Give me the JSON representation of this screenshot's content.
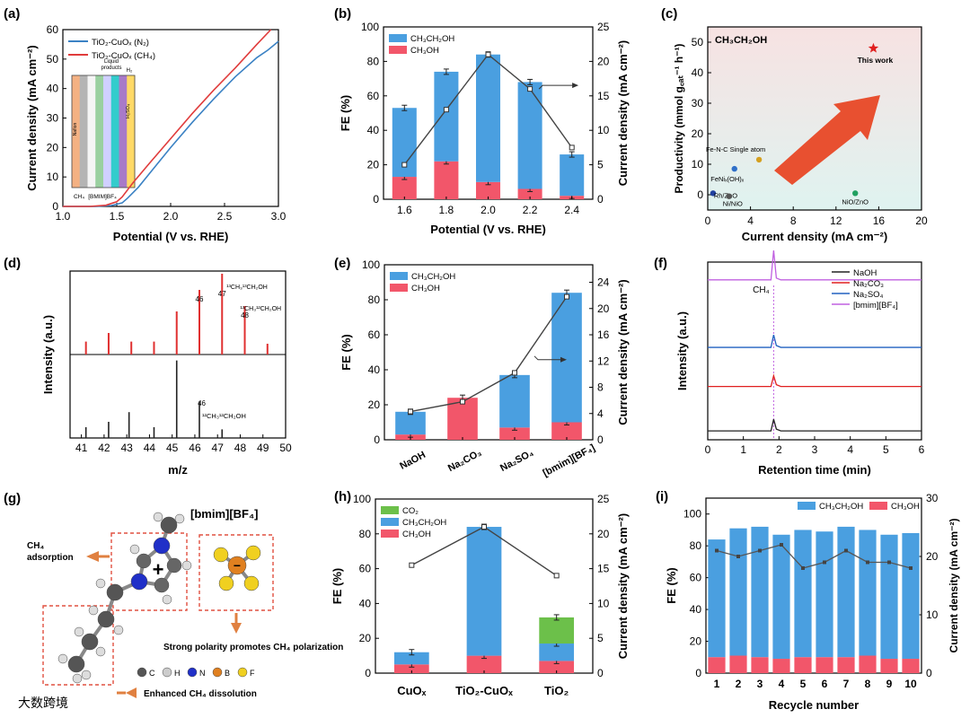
{
  "figure": {
    "watermark": "大数跨境"
  },
  "chart_data": [
    {
      "panel": "(a)",
      "type": "line",
      "xlabel": "Potential (V vs. RHE)",
      "ylabel": "Current density (mA cm⁻²)",
      "xlim": [
        1.0,
        3.0
      ],
      "ylim": [
        0,
        60
      ],
      "xticks": [
        "1.0",
        "1.5",
        "2.0",
        "2.5",
        "3.0"
      ],
      "yticks": [
        "0",
        "10",
        "20",
        "30",
        "40",
        "50",
        "60"
      ],
      "legend": [
        "TiO₂-CuOₓ (N₂)",
        "TiO₂-CuOₓ (CH₄)"
      ],
      "colors": [
        "#3b82c4",
        "#e03c3c"
      ],
      "series": [
        {
          "name": "TiO₂-CuOₓ (N₂)",
          "x": [
            1.0,
            1.3,
            1.45,
            1.55,
            1.6,
            1.7,
            1.8,
            2.0,
            2.2,
            2.4,
            2.6,
            2.8,
            2.9,
            3.0
          ],
          "y": [
            0,
            0,
            0.3,
            1.2,
            2.8,
            6.5,
            11,
            20,
            28.5,
            36.5,
            44,
            50.5,
            53,
            56
          ]
        },
        {
          "name": "TiO₂-CuOₓ (CH₄)",
          "x": [
            1.0,
            1.25,
            1.4,
            1.5,
            1.55,
            1.65,
            1.8,
            2.0,
            2.2,
            2.4,
            2.6,
            2.8,
            2.93
          ],
          "y": [
            0,
            0,
            0.4,
            1.6,
            3.2,
            8,
            14.5,
            23,
            31.5,
            39.5,
            47,
            55,
            60
          ]
        }
      ],
      "inset": {
        "labels": [
          "Liquid products",
          "H₂",
          "CH₄",
          "[BMIM]BF₄",
          "H₂SO₄",
          "Nafion"
        ]
      }
    },
    {
      "panel": "(b)",
      "type": "bar",
      "xlabel": "Potential (V vs. RHE)",
      "ylabel": "FE (%)",
      "ylabel_right": "Current density (mA cm⁻²)",
      "categories": [
        "1.6",
        "1.8",
        "2.0",
        "2.2",
        "2.4"
      ],
      "ylim": [
        0,
        100
      ],
      "ylim_right": [
        0,
        25
      ],
      "yticks": [
        "0",
        "20",
        "40",
        "60",
        "80",
        "100"
      ],
      "yticks_right": [
        "0",
        "5",
        "10",
        "15",
        "20",
        "25"
      ],
      "colors": {
        "CH3CH2OH": "#4a9fe0",
        "CH3OH": "#f2566a"
      },
      "legend": [
        "CH₃CH₂OH",
        "CH₃OH"
      ],
      "series": [
        {
          "name": "CH₃OH",
          "values": [
            13,
            22,
            10,
            6,
            2
          ]
        },
        {
          "name": "CH₃CH₂OH total",
          "values": [
            53,
            74,
            84,
            68,
            26
          ]
        }
      ],
      "current_density": [
        5,
        13,
        21,
        16,
        7.5
      ]
    },
    {
      "panel": "(c)",
      "type": "scatter",
      "title": "CH₃CH₂OH",
      "xlabel": "Current density (mA cm⁻²)",
      "ylabel": "Productivity (mmol g꜀ₐₜ⁻¹ h⁻¹)",
      "xlim": [
        0,
        20
      ],
      "ylim": [
        -5,
        55
      ],
      "xticks": [
        "0",
        "4",
        "8",
        "12",
        "16",
        "20"
      ],
      "yticks": [
        "0",
        "10",
        "20",
        "30",
        "40",
        "50"
      ],
      "points": [
        {
          "label": "This work",
          "x": 15.5,
          "y": 48,
          "color": "#e02020"
        },
        {
          "label": "Fe-N-C Single atom",
          "x": 4.8,
          "y": 11.5,
          "color": "#d4a020"
        },
        {
          "label": "FeNiₓ(OH)ₓ",
          "x": 2.5,
          "y": 8.5,
          "color": "#3070c8"
        },
        {
          "label": "Rh/ZnO",
          "x": 0.5,
          "y": 0.5,
          "color": "#2040a0"
        },
        {
          "label": "Ni/NiO",
          "x": 2.0,
          "y": -0.5,
          "color": "#555555"
        },
        {
          "label": "NiO/ZnO",
          "x": 13.8,
          "y": 0.5,
          "color": "#20a060"
        }
      ]
    },
    {
      "panel": "(d)",
      "type": "bar",
      "xlabel": "m/z",
      "ylabel": "Intensity (a.u.)",
      "categories": [
        "41",
        "42",
        "43",
        "44",
        "45",
        "46",
        "47",
        "48",
        "49",
        "50"
      ],
      "series": [
        {
          "name": "¹³CH₃¹³CH₂OH",
          "x": [
            41.2,
            42.2,
            43.2,
            44.2,
            45.2,
            46.2,
            47.2,
            48.2,
            49.2
          ],
          "values": [
            0.12,
            0.2,
            0.12,
            0.12,
            0.4,
            0.6,
            0.75,
            0.45,
            0.1
          ]
        },
        {
          "name": "¹²CH₃¹²CH₂OH",
          "x": [
            41.2,
            42.2,
            43.1,
            44.2,
            45.2,
            46.2,
            47.2
          ],
          "values": [
            0.1,
            0.15,
            0.24,
            0.1,
            0.72,
            0.34,
            0.08
          ]
        }
      ],
      "annotations": [
        "46",
        "47",
        "48",
        "¹³CH₃¹³CH₂OH",
        "¹³CH₃¹²CH₂OH",
        "46",
        "¹²CH₃¹²CH₂OH"
      ]
    },
    {
      "panel": "(e)",
      "type": "bar",
      "ylabel": "FE (%)",
      "ylabel_right": "Current density (mA cm⁻²)",
      "categories": [
        "NaOH",
        "Na₂CO₃",
        "Na₂SO₄",
        "[bmim][BF₄]"
      ],
      "ylim": [
        0,
        100
      ],
      "ylim_right": [
        0,
        26.67
      ],
      "yticks": [
        "0",
        "20",
        "40",
        "60",
        "80",
        "100"
      ],
      "yticks_right": [
        "0",
        "4",
        "8",
        "12",
        "16",
        "20",
        "24"
      ],
      "legend": [
        "CH₃CH₂OH",
        "CH₃OH"
      ],
      "series": [
        {
          "name": "CH₃OH",
          "values": [
            3,
            24,
            7,
            10
          ]
        },
        {
          "name": "CH₃CH₂OH total",
          "values": [
            16,
            24,
            37,
            84
          ]
        }
      ],
      "current_density": [
        4.3,
        5.8,
        10.2,
        21.8
      ]
    },
    {
      "panel": "(f)",
      "type": "line",
      "xlabel": "Retention time (min)",
      "ylabel": "Intensity (a.u.)",
      "xlim": [
        0,
        6
      ],
      "xticks": [
        "0",
        "1",
        "2",
        "3",
        "4",
        "5",
        "6"
      ],
      "peak_label": "CH₄",
      "peak_x": 1.85,
      "legend": [
        "NaOH",
        "Na₂CO₃",
        "Na₂SO₄",
        "[bmim][BF₄]"
      ],
      "colors": [
        "#222222",
        "#e02020",
        "#2060c0",
        "#c060e0"
      ],
      "baselines": [
        0.05,
        0.3,
        0.52,
        0.9
      ],
      "peak_heights": [
        0.1,
        0.08,
        0.12,
        0.5
      ]
    },
    {
      "panel": "(g)",
      "type": "diagram",
      "title": "[bmim][BF₄]",
      "labels": [
        "CH₄ adsorption",
        "Strong polarity promotes CH₄ polarization",
        "Enhanced CH₄ dissolution"
      ],
      "legend": [
        "C",
        "H",
        "N",
        "B",
        "F"
      ],
      "legend_colors": [
        "#555555",
        "#cccccc",
        "#2030c8",
        "#e08020",
        "#f0d020"
      ]
    },
    {
      "panel": "(h)",
      "type": "bar",
      "ylabel": "FE (%)",
      "ylabel_right": "Current density (mA cm⁻²)",
      "categories": [
        "CuOₓ",
        "TiO₂-CuOₓ",
        "TiO₂"
      ],
      "ylim": [
        0,
        100
      ],
      "ylim_right": [
        0,
        25
      ],
      "yticks": [
        "0",
        "20",
        "40",
        "60",
        "80",
        "100"
      ],
      "yticks_right": [
        "0",
        "5",
        "10",
        "15",
        "20",
        "25"
      ],
      "legend": [
        "CO₂",
        "CH₃CH₂OH",
        "CH₃OH"
      ],
      "series": [
        {
          "name": "CH₃OH",
          "values": [
            5,
            10,
            7
          ]
        },
        {
          "name": "CH₃CH₂OH top",
          "values": [
            12,
            84,
            17
          ]
        },
        {
          "name": "CO₂ top",
          "values": [
            12,
            84,
            32
          ]
        }
      ],
      "current_density": [
        15.5,
        21,
        14
      ]
    },
    {
      "panel": "(i)",
      "type": "bar",
      "xlabel": "Recycle number",
      "ylabel": "FE (%)",
      "ylabel_right": "Current density (mA cm⁻²)",
      "categories": [
        "1",
        "2",
        "3",
        "4",
        "5",
        "6",
        "7",
        "8",
        "9",
        "10"
      ],
      "ylim": [
        0,
        110
      ],
      "ylim_right": [
        0,
        30
      ],
      "yticks": [
        "0",
        "20",
        "40",
        "60",
        "80",
        "100"
      ],
      "yticks_right": [
        "0",
        "10",
        "20",
        "30"
      ],
      "legend": [
        "CH₃CH₂OH",
        "CH₃OH"
      ],
      "series": [
        {
          "name": "CH₃OH",
          "values": [
            10,
            11,
            10,
            9,
            10,
            10,
            10,
            11,
            9,
            9
          ]
        },
        {
          "name": "CH₃CH₂OH total",
          "values": [
            84,
            91,
            92,
            87,
            90,
            89,
            92,
            90,
            87,
            88
          ]
        }
      ],
      "current_density": [
        21,
        20,
        21,
        22,
        18,
        19,
        21,
        19,
        19,
        18
      ]
    }
  ]
}
